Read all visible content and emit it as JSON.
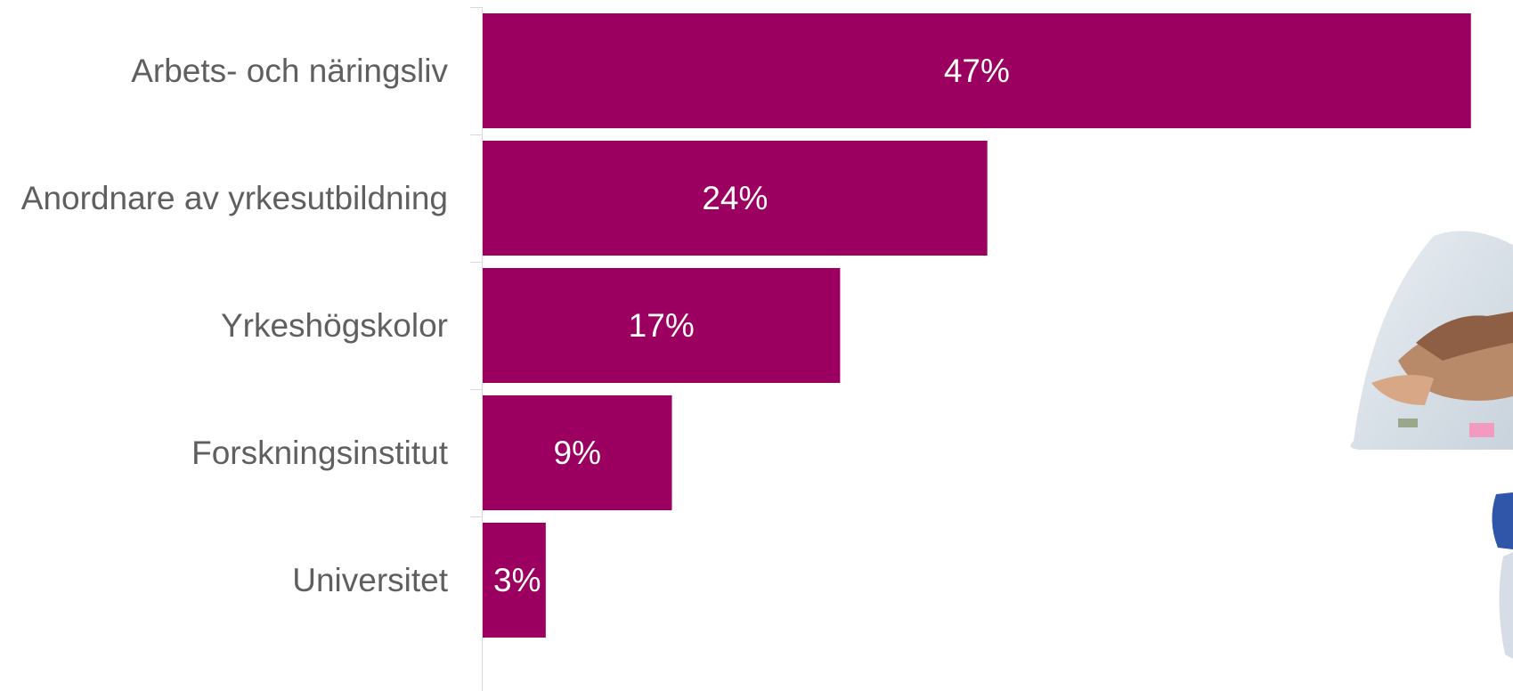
{
  "chart_data": {
    "type": "bar",
    "orientation": "horizontal",
    "categories": [
      "Arbets- och näringsliv",
      "Anordnare av yrkesutbildning",
      "Yrkeshögskolor",
      "Forskningsinstitut",
      "Universitet"
    ],
    "values": [
      47,
      24,
      17,
      9,
      3
    ],
    "value_labels": [
      "47%",
      "24%",
      "17%",
      "9%",
      "3%"
    ],
    "unit": "%",
    "bar_color": "#9b0060",
    "title": "",
    "xlabel": "",
    "ylabel": "",
    "grid": false,
    "legend": "none"
  },
  "decorations": {
    "photo": {
      "icon": "teamwork-hands-photo"
    }
  }
}
